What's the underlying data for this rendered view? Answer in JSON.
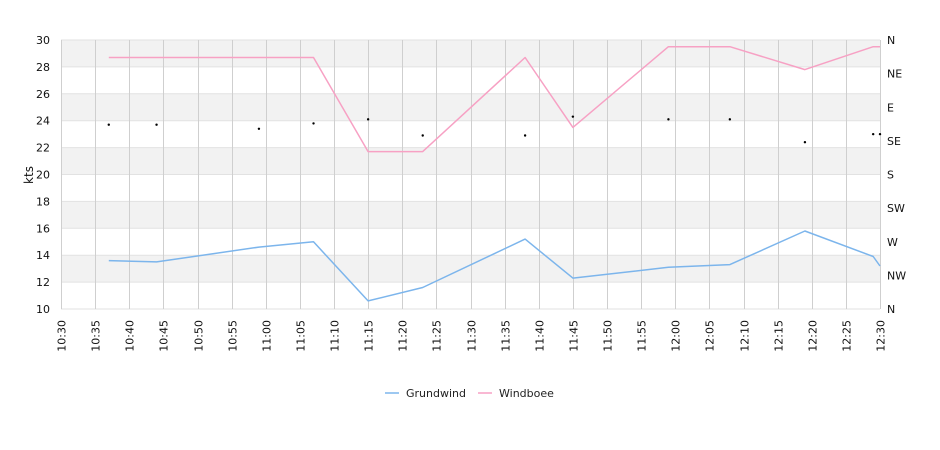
{
  "chart_data": {
    "type": "line",
    "ylabel": "kts",
    "ylim": [
      10,
      30
    ],
    "y_ticks": [
      "10",
      "12",
      "14",
      "16",
      "18",
      "20",
      "22",
      "24",
      "26",
      "28",
      "30"
    ],
    "x_ticks": [
      "10:30",
      "10:35",
      "10:40",
      "10:45",
      "10:50",
      "10:55",
      "11:00",
      "11:05",
      "11:10",
      "11:15",
      "11:20",
      "11:25",
      "11:30",
      "11:35",
      "11:40",
      "11:45",
      "11:50",
      "11:55",
      "12:00",
      "12:05",
      "12:10",
      "12:15",
      "12:20",
      "12:25",
      "12:30"
    ],
    "x_start": "10:30",
    "x_end": "12:30",
    "direction_ticks": [
      "N",
      "NW",
      "W",
      "SW",
      "S",
      "SE",
      "E",
      "NE",
      "N"
    ],
    "direction_range": [
      0,
      360
    ],
    "grid": true,
    "legend_position": "bottom-center",
    "colors": {
      "Grundwind": "#7cb5ec",
      "Windboee": "#f7a1c4"
    },
    "series": [
      {
        "name": "Grundwind",
        "points": [
          [
            "10:37",
            13.6
          ],
          [
            "10:44",
            13.5
          ],
          [
            "10:59",
            14.6
          ],
          [
            "11:07",
            15.0
          ],
          [
            "11:15",
            10.6
          ],
          [
            "11:23",
            11.6
          ],
          [
            "11:38",
            15.2
          ],
          [
            "11:45",
            12.3
          ],
          [
            "11:59",
            13.1
          ],
          [
            "12:08",
            13.3
          ],
          [
            "12:19",
            15.8
          ],
          [
            "12:29",
            13.9
          ],
          [
            "12:30",
            13.2
          ]
        ]
      },
      {
        "name": "Windboee",
        "points": [
          [
            "10:37",
            28.7
          ],
          [
            "11:07",
            28.7
          ],
          [
            "11:15",
            21.7
          ],
          [
            "11:23",
            21.7
          ],
          [
            "11:38",
            28.7
          ],
          [
            "11:45",
            23.5
          ],
          [
            "11:59",
            29.5
          ],
          [
            "12:08",
            29.5
          ],
          [
            "12:19",
            27.8
          ],
          [
            "12:29",
            29.5
          ],
          [
            "12:30",
            29.5
          ]
        ]
      }
    ],
    "direction_markers": [
      [
        "10:37",
        23.7
      ],
      [
        "10:44",
        23.7
      ],
      [
        "10:59",
        23.4
      ],
      [
        "11:07",
        23.8
      ],
      [
        "11:15",
        24.1
      ],
      [
        "11:23",
        22.9
      ],
      [
        "11:38",
        22.9
      ],
      [
        "11:45",
        24.3
      ],
      [
        "11:59",
        24.1
      ],
      [
        "12:08",
        24.1
      ],
      [
        "12:19",
        22.4
      ],
      [
        "12:29",
        23.0
      ],
      [
        "12:30",
        23.0
      ]
    ]
  }
}
